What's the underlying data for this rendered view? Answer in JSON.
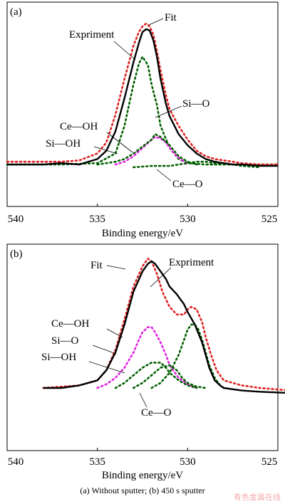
{
  "caption": "(a)  Without sputter; (b) 450 s sputter",
  "watermark": "有色金属在线",
  "colors": {
    "expriment": "#000000",
    "fit": "#e02020",
    "si_o_like": "#006000",
    "ce_oh_like": "#e020e0"
  },
  "chart_data": [
    {
      "type": "line",
      "panel_label": "(a)",
      "xlabel": "Binding energy/eV",
      "xlim": [
        540,
        525
      ],
      "x_ticks": [
        540,
        535,
        530,
        525
      ],
      "series": [
        {
          "name": "Expriment",
          "style": "solid",
          "color": "#000000",
          "x": [
            540,
            538,
            537,
            536,
            535,
            534.5,
            534,
            533.5,
            533,
            532.7,
            532.5,
            532.3,
            532.1,
            531.9,
            531.7,
            531.5,
            531.2,
            531,
            530.5,
            530,
            529.5,
            529,
            528.5,
            528,
            527.5,
            527,
            526,
            525
          ],
          "y": [
            0.02,
            0.02,
            0.03,
            0.02,
            0.06,
            0.12,
            0.26,
            0.5,
            0.76,
            0.9,
            0.98,
            1.0,
            0.99,
            0.92,
            0.8,
            0.64,
            0.46,
            0.37,
            0.24,
            0.16,
            0.1,
            0.06,
            0.04,
            0.03,
            0.02,
            0.02,
            0.01,
            0.01
          ]
        },
        {
          "name": "Fit",
          "style": "dotted",
          "color": "#e02020",
          "x": [
            540,
            538,
            537,
            536,
            535,
            534.5,
            534,
            533.5,
            533,
            532.7,
            532.5,
            532.3,
            532.1,
            531.9,
            531.7,
            531.5,
            531.2,
            531,
            530.5,
            530,
            529.5,
            529,
            528.5,
            528,
            527.5,
            527,
            526,
            525
          ],
          "y": [
            0.04,
            0.04,
            0.04,
            0.05,
            0.1,
            0.18,
            0.38,
            0.64,
            0.88,
            0.98,
            1.02,
            1.04,
            1.02,
            0.96,
            0.84,
            0.7,
            0.52,
            0.42,
            0.3,
            0.2,
            0.12,
            0.08,
            0.06,
            0.05,
            0.04,
            0.03,
            0.02,
            0.02
          ]
        },
        {
          "name": "Si—O",
          "style": "dotted",
          "color": "#006000",
          "x": [
            540,
            537,
            535,
            534,
            533.5,
            533,
            532.7,
            532.5,
            532.2,
            532,
            531.7,
            531.5,
            531,
            530.5,
            530,
            529,
            527,
            525
          ],
          "y": [
            0.02,
            0.02,
            0.03,
            0.1,
            0.3,
            0.6,
            0.75,
            0.8,
            0.74,
            0.6,
            0.45,
            0.3,
            0.14,
            0.06,
            0.03,
            0.02,
            0.02,
            0.02
          ]
        },
        {
          "name": "Ce—OH",
          "style": "dotted",
          "color": "#e020e0",
          "x": [
            534,
            533.5,
            533,
            532.5,
            532,
            531.8,
            531.5,
            531.2,
            531,
            530.6,
            530.2,
            530
          ],
          "y": [
            0.02,
            0.04,
            0.08,
            0.14,
            0.2,
            0.22,
            0.21,
            0.18,
            0.14,
            0.08,
            0.04,
            0.02
          ]
        },
        {
          "name": "Si—OH",
          "style": "dotted",
          "color": "#006000",
          "x": [
            535,
            534,
            533.5,
            533,
            532.5,
            532,
            531.8,
            531.5,
            531,
            530.5,
            530,
            529.5
          ],
          "y": [
            0.02,
            0.04,
            0.06,
            0.1,
            0.15,
            0.2,
            0.24,
            0.22,
            0.16,
            0.08,
            0.04,
            0.02
          ]
        },
        {
          "name": "Ce—O",
          "style": "dotted",
          "color": "#006000",
          "x": [
            533,
            532,
            531,
            530.5,
            530,
            529.5,
            529,
            528.5,
            528,
            527.5,
            527,
            526
          ],
          "y": [
            0.0,
            0.01,
            0.01,
            0.02,
            0.03,
            0.04,
            0.04,
            0.03,
            0.03,
            0.02,
            0.01,
            0.0
          ]
        }
      ],
      "annotations": [
        {
          "text": "Fit",
          "target": "Fit"
        },
        {
          "text": "Expriment",
          "target": "Expriment"
        },
        {
          "text": "Si—O",
          "target": "Si—O"
        },
        {
          "text": "Ce—OH",
          "target": "Ce—OH"
        },
        {
          "text": "Si—OH",
          "target": "Si—OH"
        },
        {
          "text": "Ce—O",
          "target": "Ce—O"
        }
      ]
    },
    {
      "type": "line",
      "panel_label": "(b)",
      "xlabel": "Binding energy/eV",
      "xlim": [
        540,
        525
      ],
      "x_ticks": [
        540,
        535,
        530,
        525
      ],
      "series": [
        {
          "name": "Expriment",
          "style": "solid",
          "color": "#000000",
          "x": [
            538,
            537,
            536,
            535,
            534.5,
            534,
            533.5,
            533,
            532.5,
            532.2,
            532,
            531.8,
            531.5,
            531.2,
            531,
            530.6,
            530.2,
            530,
            529.6,
            529.2,
            529,
            528.8,
            528.5,
            528.2,
            528,
            527,
            526,
            524.3
          ],
          "y": [
            0.0,
            0.0,
            0.02,
            0.06,
            0.14,
            0.28,
            0.5,
            0.76,
            0.92,
            0.98,
            1.0,
            0.98,
            0.92,
            0.86,
            0.8,
            0.74,
            0.66,
            0.6,
            0.5,
            0.36,
            0.26,
            0.16,
            0.06,
            0.02,
            0.0,
            -0.02,
            -0.03,
            -0.04
          ]
        },
        {
          "name": "Fit",
          "style": "dotted",
          "color": "#e02020",
          "x": [
            538,
            537,
            536,
            535,
            534.5,
            534,
            533.5,
            533,
            532.5,
            532.2,
            532,
            531.7,
            531.4,
            531,
            530.6,
            530.2,
            530,
            529.8,
            529.5,
            529.2,
            529,
            528.7,
            528.4,
            528,
            527,
            526,
            524.3
          ],
          "y": [
            0.0,
            0.01,
            0.02,
            0.06,
            0.14,
            0.3,
            0.54,
            0.8,
            0.96,
            1.02,
            1.0,
            0.9,
            0.76,
            0.64,
            0.58,
            0.58,
            0.62,
            0.64,
            0.62,
            0.52,
            0.4,
            0.26,
            0.14,
            0.06,
            0.02,
            0.0,
            -0.02
          ]
        },
        {
          "name": "Ce—OH",
          "style": "dotted",
          "color": "#e020e0",
          "x": [
            535,
            534.5,
            534,
            533.5,
            533,
            532.7,
            532.5,
            532.2,
            532,
            531.8,
            531.5,
            531.2,
            531,
            530.5,
            530,
            529.5
          ],
          "y": [
            0.0,
            0.03,
            0.08,
            0.16,
            0.28,
            0.38,
            0.44,
            0.48,
            0.48,
            0.44,
            0.36,
            0.26,
            0.18,
            0.08,
            0.03,
            0.0
          ]
        },
        {
          "name": "Si—O",
          "style": "dotted",
          "color": "#006000",
          "x": [
            534,
            533.5,
            533,
            532.5,
            532,
            531.5,
            531.2,
            531,
            530.5,
            530,
            529.5
          ],
          "y": [
            0.0,
            0.04,
            0.1,
            0.16,
            0.2,
            0.2,
            0.16,
            0.12,
            0.06,
            0.02,
            0.0
          ]
        },
        {
          "name": "Si—OH",
          "style": "dotted",
          "color": "#006000",
          "x": [
            533,
            532.5,
            532,
            531.5,
            531,
            530.6,
            530.3,
            530,
            529.5,
            529
          ],
          "y": [
            0.0,
            0.04,
            0.1,
            0.16,
            0.18,
            0.14,
            0.08,
            0.04,
            0.01,
            0.0
          ]
        },
        {
          "name": "Ce—O",
          "style": "dotted",
          "color": "#006000",
          "x": [
            532,
            531.5,
            531,
            530.5,
            530.2,
            530,
            529.8,
            529.6,
            529.4,
            529.2,
            529,
            528.8,
            528.5,
            528.2,
            528
          ],
          "y": [
            0.0,
            0.04,
            0.12,
            0.26,
            0.38,
            0.46,
            0.5,
            0.5,
            0.46,
            0.38,
            0.28,
            0.18,
            0.08,
            0.02,
            0.0
          ]
        }
      ],
      "annotations": [
        {
          "text": "Fit",
          "target": "Fit"
        },
        {
          "text": "Expriment",
          "target": "Expriment"
        },
        {
          "text": "Ce—OH",
          "target": "Ce—OH"
        },
        {
          "text": "Si—O",
          "target": "Si—O"
        },
        {
          "text": "Si—OH",
          "target": "Si—OH"
        },
        {
          "text": "Ce—O",
          "target": "Ce—O"
        }
      ]
    }
  ]
}
